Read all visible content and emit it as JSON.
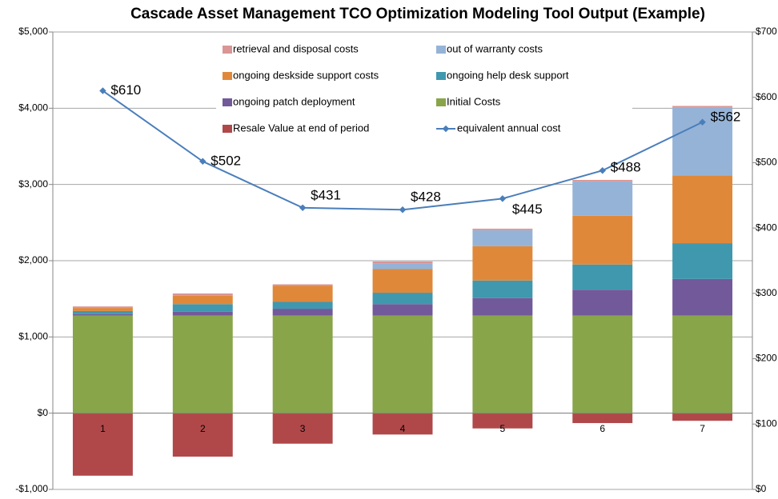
{
  "chart_data": {
    "type": "bar",
    "title": "Cascade Asset Management TCO Optimization Modeling Tool Output (Example)",
    "categories": [
      "1",
      "2",
      "3",
      "4",
      "5",
      "6",
      "7"
    ],
    "series": [
      {
        "name": "retrieval and disposal costs",
        "color": "#D99694",
        "values": [
          20,
          30,
          20,
          30,
          20,
          20,
          20
        ]
      },
      {
        "name": "out of warranty costs",
        "color": "#95B3D7",
        "values": [
          0,
          0,
          0,
          70,
          210,
          450,
          890
        ]
      },
      {
        "name": "ongoing deskside support costs",
        "color": "#E0883A",
        "values": [
          40,
          110,
          210,
          310,
          450,
          640,
          890
        ]
      },
      {
        "name": "ongoing help desk support",
        "color": "#3F98AE",
        "values": [
          40,
          100,
          90,
          150,
          230,
          330,
          470
        ]
      },
      {
        "name": "ongoing patch deployment",
        "color": "#72599A",
        "values": [
          20,
          50,
          90,
          150,
          230,
          340,
          480
        ]
      },
      {
        "name": "Initial Costs",
        "color": "#88A54A",
        "values": [
          1280,
          1280,
          1280,
          1280,
          1280,
          1280,
          1280
        ]
      },
      {
        "name": "Resale Value at end of period",
        "color": "#B0484A",
        "values": [
          -820,
          -570,
          -400,
          -280,
          -200,
          -130,
          -100
        ]
      },
      {
        "name": "equivalent annual cost",
        "color": "#4A7EBB",
        "type": "line",
        "axis": "y2",
        "values": [
          610,
          502,
          431,
          428,
          445,
          488,
          562
        ],
        "value_labels": [
          "$610",
          "$502",
          "$431",
          "$428",
          "$445",
          "$488",
          "$562"
        ]
      }
    ],
    "ylim": [
      -1000,
      5000
    ],
    "yticks": [
      {
        "value": -1000,
        "label": "-$1,000"
      },
      {
        "value": 0,
        "label": "$0"
      },
      {
        "value": 1000,
        "label": "$1,000"
      },
      {
        "value": 2000,
        "label": "$2,000"
      },
      {
        "value": 3000,
        "label": "$3,000"
      },
      {
        "value": 4000,
        "label": "$4,000"
      },
      {
        "value": 5000,
        "label": "$5,000"
      }
    ],
    "y2lim": [
      0,
      700
    ],
    "y2ticks": [
      {
        "value": 0,
        "label": "$0"
      },
      {
        "value": 100,
        "label": "$100"
      },
      {
        "value": 200,
        "label": "$200"
      },
      {
        "value": 300,
        "label": "$300"
      },
      {
        "value": 400,
        "label": "$400"
      },
      {
        "value": 500,
        "label": "$500"
      },
      {
        "value": 600,
        "label": "$600"
      },
      {
        "value": 700,
        "label": "$700"
      }
    ],
    "grid": true
  }
}
